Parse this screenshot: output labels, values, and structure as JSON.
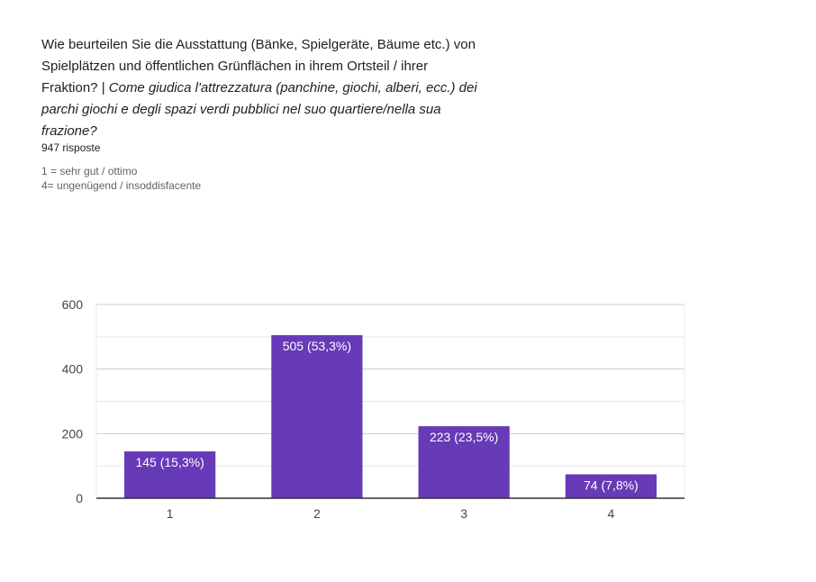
{
  "question": {
    "text_de": "Wie beurteilen Sie die Ausstattung (Bänke, Spielgeräte, Bäume etc.) von Spielplätzen und öffentlichen Grünflächen in ihrem Ortsteil / ihrer Fraktion? | ",
    "text_it": "Come giudica l'attrezzatura (panchine, giochi, alberi, ecc.) dei parchi giochi e degli spazi verdi pubblici nel suo quartiere/nella sua frazione?"
  },
  "responses": "947 risposte",
  "description": [
    "1 = sehr gut / ottimo",
    "4= ungenügend / insoddisfacente"
  ],
  "colors": {
    "bar": "#673ab7",
    "grid": "#e8e8e8",
    "axis": "#333333"
  },
  "chart_data": {
    "type": "bar",
    "categories": [
      "1",
      "2",
      "3",
      "4"
    ],
    "values": [
      145,
      505,
      223,
      74
    ],
    "data_labels": [
      "145 (15,3%)",
      "505 (53,3%)",
      "223 (23,5%)",
      "74 (7,8%)"
    ],
    "ylim": [
      0,
      600
    ],
    "yticks": [
      0,
      200,
      400,
      600
    ],
    "minor_gridlines": true,
    "legend": "none"
  }
}
